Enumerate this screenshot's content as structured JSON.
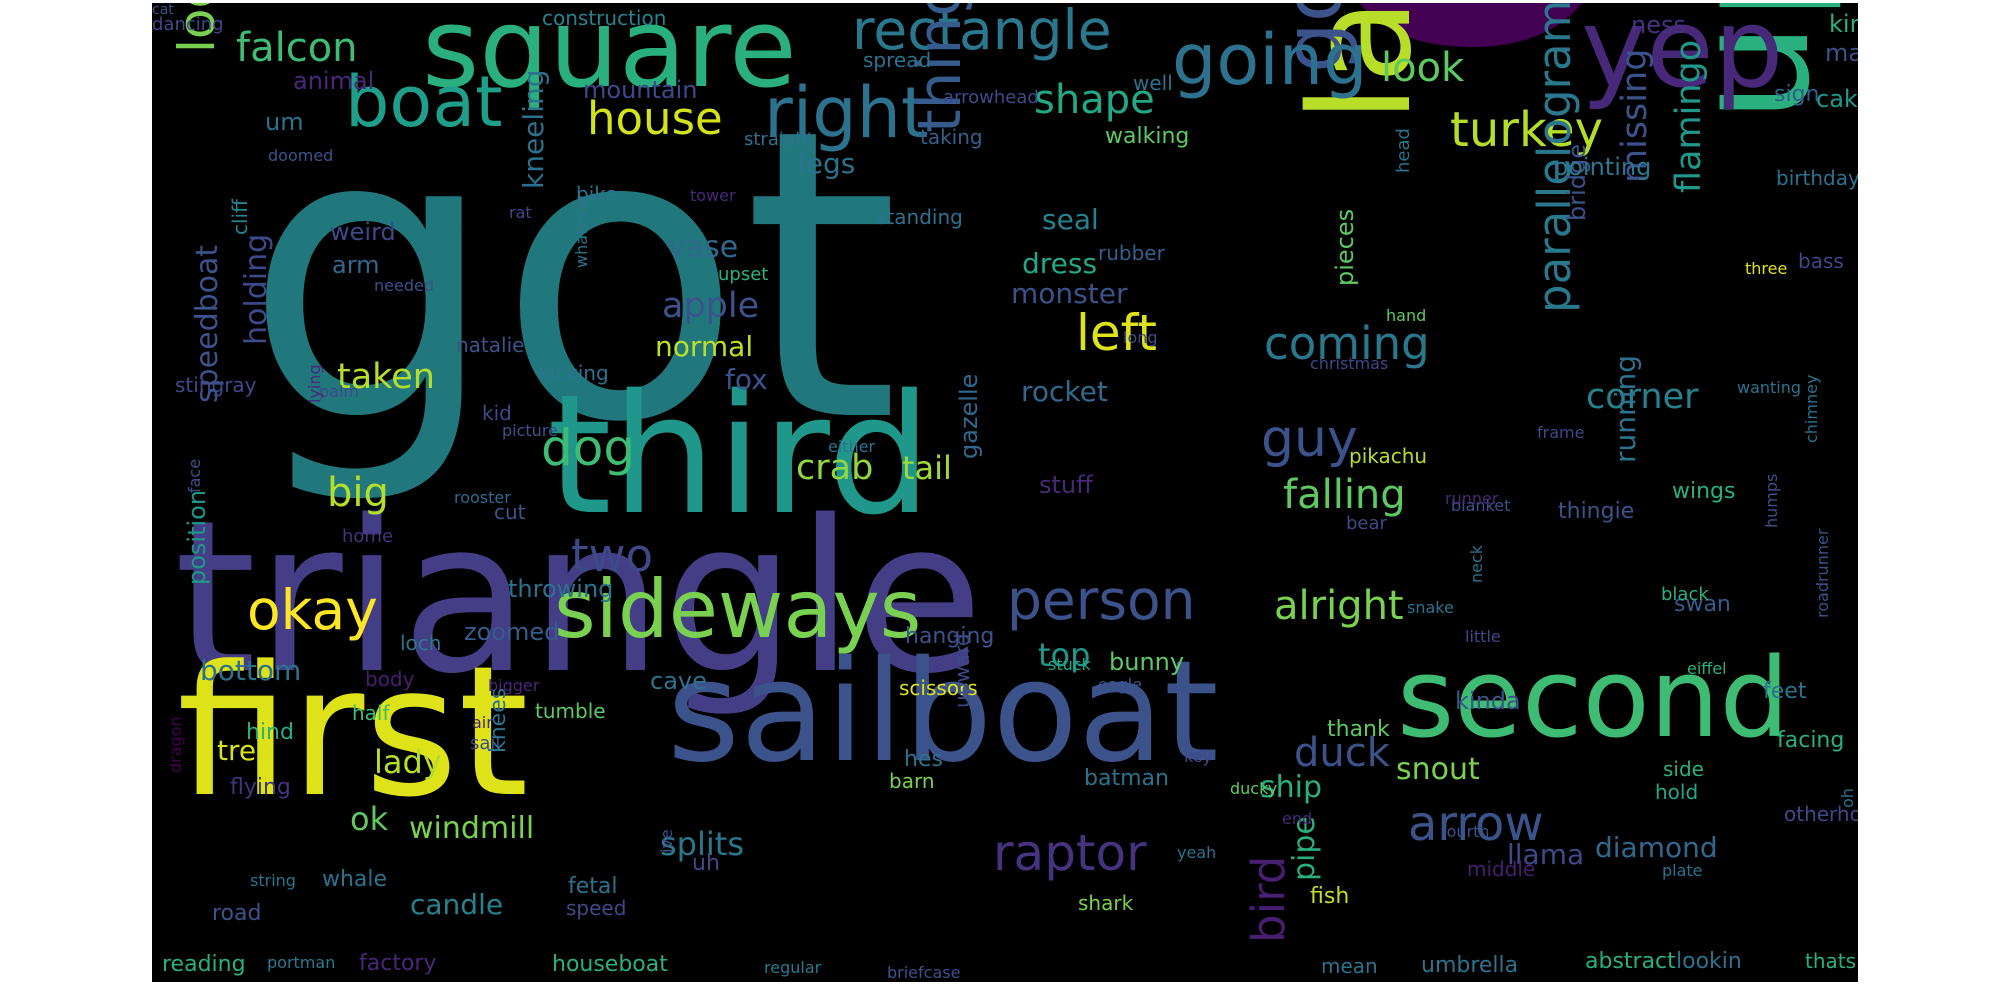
{
  "cloud": {
    "words": [
      {
        "text": "got",
        "color": "#21787c"
      },
      {
        "text": "one",
        "color": "#440154"
      },
      {
        "text": "triangle",
        "color": "#433e85"
      },
      {
        "text": "first",
        "color": "#dde318"
      },
      {
        "text": "third",
        "color": "#1f988b"
      },
      {
        "text": "upside",
        "color": "#2ab07f"
      },
      {
        "text": "last",
        "color": "#b8de29"
      },
      {
        "text": "sailboat",
        "color": "#3b528b"
      },
      {
        "text": "square",
        "color": "#2ab07f"
      },
      {
        "text": "second",
        "color": "#3fbc73"
      },
      {
        "text": "sideways",
        "color": "#7ad151"
      },
      {
        "text": "yep",
        "color": "#482878"
      },
      {
        "text": "gotcha",
        "color": "#3b528b"
      },
      {
        "text": "boat",
        "color": "#1f9e89"
      },
      {
        "text": "rectangle",
        "color": "#2a788e"
      },
      {
        "text": "going",
        "color": "#2c728e"
      },
      {
        "text": "looking",
        "color": "#7ad151"
      },
      {
        "text": "right",
        "color": "#2c728e"
      },
      {
        "text": "thing",
        "color": "#365c8d"
      },
      {
        "text": "person",
        "color": "#3b528b"
      },
      {
        "text": "okay",
        "color": "#fde725"
      },
      {
        "text": "dog",
        "color": "#3fbc73"
      },
      {
        "text": "look",
        "color": "#5ec962"
      },
      {
        "text": "falcon",
        "color": "#3fbc73"
      },
      {
        "text": "house",
        "color": "#d2e21b"
      },
      {
        "text": "turkey",
        "color": "#b5de2b"
      },
      {
        "text": "left",
        "color": "#dde318"
      },
      {
        "text": "guy",
        "color": "#3b528b"
      },
      {
        "text": "two",
        "color": "#3e4989"
      },
      {
        "text": "shape",
        "color": "#22a884"
      },
      {
        "text": "parallelogram",
        "color": "#2a788e"
      },
      {
        "text": "raptor",
        "color": "#46327e"
      },
      {
        "text": "arrow",
        "color": "#3b528b"
      },
      {
        "text": "big",
        "color": "#b5de2b"
      },
      {
        "text": "bird",
        "color": "#481f70"
      },
      {
        "text": "coming",
        "color": "#2a788e"
      },
      {
        "text": "alright",
        "color": "#7ad151"
      },
      {
        "text": "falling",
        "color": "#5ec962"
      },
      {
        "text": "corner",
        "color": "#26828e"
      },
      {
        "text": "flamingo",
        "color": "#1f988b"
      },
      {
        "text": "missing",
        "color": "#3b528b"
      },
      {
        "text": "apple",
        "color": "#3b528b"
      },
      {
        "text": "taken",
        "color": "#b5de2b"
      },
      {
        "text": "crab",
        "color": "#90d743"
      },
      {
        "text": "tail",
        "color": "#a0da39"
      },
      {
        "text": "vase",
        "color": "#31688e"
      },
      {
        "text": "duck",
        "color": "#3b528b"
      },
      {
        "text": "splits",
        "color": "#2a788e"
      },
      {
        "text": "ok",
        "color": "#5ec962"
      },
      {
        "text": "lady",
        "color": "#b5de2b"
      },
      {
        "text": "windmill",
        "color": "#7ad151"
      },
      {
        "text": "holding",
        "color": "#3e4989"
      },
      {
        "text": "speedboat",
        "color": "#3b528b"
      },
      {
        "text": "top",
        "color": "#1f988b"
      },
      {
        "text": "running",
        "color": "#2c728e"
      },
      {
        "text": "diamond",
        "color": "#31688e"
      },
      {
        "text": "llama",
        "color": "#3e4989"
      },
      {
        "text": "ship",
        "color": "#2ab07f"
      },
      {
        "text": "snout",
        "color": "#7ad151"
      },
      {
        "text": "kneeling",
        "color": "#2c728e"
      },
      {
        "text": "pipe",
        "color": "#2ab07f"
      },
      {
        "text": "fox",
        "color": "#3b528b"
      },
      {
        "text": "normal",
        "color": "#bddf26"
      },
      {
        "text": "legs",
        "color": "#2c728e"
      },
      {
        "text": "seal",
        "color": "#26828e"
      },
      {
        "text": "dress",
        "color": "#22a884"
      },
      {
        "text": "monster",
        "color": "#3b528b"
      },
      {
        "text": "rocket",
        "color": "#31688e"
      },
      {
        "text": "bottom",
        "color": "#2c728e"
      },
      {
        "text": "tree",
        "color": "#d8e219"
      },
      {
        "text": "mountain",
        "color": "#3e4989"
      },
      {
        "text": "weird",
        "color": "#3e4989"
      },
      {
        "text": "arm",
        "color": "#31688e"
      },
      {
        "text": "position",
        "color": "#1f988b"
      },
      {
        "text": "gazelle",
        "color": "#31688e"
      },
      {
        "text": "stuff",
        "color": "#482878"
      },
      {
        "text": "pieces",
        "color": "#5ec962"
      },
      {
        "text": "bridge",
        "color": "#3b528b"
      },
      {
        "text": "pointing",
        "color": "#2a788e"
      },
      {
        "text": "animal",
        "color": "#482878"
      },
      {
        "text": "um",
        "color": "#2c728e"
      },
      {
        "text": "sign",
        "color": "#365c8d"
      },
      {
        "text": "cake",
        "color": "#1f988b"
      },
      {
        "text": "kind",
        "color": "#2ab07f"
      },
      {
        "text": "man",
        "color": "#3b528b"
      },
      {
        "text": "ness",
        "color": "#46327e"
      },
      {
        "text": "spread",
        "color": "#2c728e"
      },
      {
        "text": "construction",
        "color": "#25848e"
      },
      {
        "text": "dancing",
        "color": "#3e4989"
      },
      {
        "text": "taking",
        "color": "#355f8d"
      },
      {
        "text": "walking",
        "color": "#5ec962"
      },
      {
        "text": "cliff",
        "color": "#26828e"
      },
      {
        "text": "standing",
        "color": "#2c728e"
      },
      {
        "text": "rubber",
        "color": "#355f8d"
      },
      {
        "text": "natalie",
        "color": "#3b528b"
      },
      {
        "text": "kicking",
        "color": "#2c728e"
      },
      {
        "text": "kid",
        "color": "#3e4989"
      },
      {
        "text": "picture",
        "color": "#3b528b"
      },
      {
        "text": "stingray",
        "color": "#3e4989"
      },
      {
        "text": "palm",
        "color": "#3e4989"
      },
      {
        "text": "cut",
        "color": "#3b528b"
      },
      {
        "text": "rooster",
        "color": "#31688e"
      },
      {
        "text": "home",
        "color": "#46327e"
      },
      {
        "text": "throwing",
        "color": "#2c728e"
      },
      {
        "text": "zoomed",
        "color": "#365c8d"
      },
      {
        "text": "loch",
        "color": "#2a788e"
      },
      {
        "text": "body",
        "color": "#481f70"
      },
      {
        "text": "bigger",
        "color": "#482878"
      },
      {
        "text": "tumble",
        "color": "#5ec962"
      },
      {
        "text": "cave",
        "color": "#2c728e"
      },
      {
        "text": "scissors",
        "color": "#dde318"
      },
      {
        "text": "bunny",
        "color": "#5ec962"
      },
      {
        "text": "stuck",
        "color": "#22a884"
      },
      {
        "text": "eagle",
        "color": "#3b528b"
      },
      {
        "text": "hanging",
        "color": "#3b528b"
      },
      {
        "text": "hind",
        "color": "#2ab07f"
      },
      {
        "text": "half",
        "color": "#3fbc73"
      },
      {
        "text": "air",
        "color": "#482878"
      },
      {
        "text": "sail",
        "color": "#3e4989"
      },
      {
        "text": "flying",
        "color": "#46327e"
      },
      {
        "text": "knees",
        "color": "#2c728e"
      },
      {
        "text": "hes",
        "color": "#2c728e"
      },
      {
        "text": "barn",
        "color": "#7ad151"
      },
      {
        "text": "batman",
        "color": "#2c728e"
      },
      {
        "text": "thank",
        "color": "#5ec962"
      },
      {
        "text": "candle",
        "color": "#26828e"
      },
      {
        "text": "uh",
        "color": "#3e4989"
      },
      {
        "text": "fetal",
        "color": "#2c728e"
      },
      {
        "text": "speed",
        "color": "#3e4989"
      },
      {
        "text": "whale",
        "color": "#2c728e"
      },
      {
        "text": "road",
        "color": "#3b528b"
      },
      {
        "text": "string",
        "color": "#2c728e"
      },
      {
        "text": "dragon",
        "color": "#440154"
      },
      {
        "text": "reading",
        "color": "#2ab07f"
      },
      {
        "text": "portman",
        "color": "#2a788e"
      },
      {
        "text": "factory",
        "color": "#482878"
      },
      {
        "text": "houseboat",
        "color": "#2ab07f"
      },
      {
        "text": "regular",
        "color": "#2a788e"
      },
      {
        "text": "briefcase",
        "color": "#3b528b"
      },
      {
        "text": "umbrella",
        "color": "#2c728e"
      },
      {
        "text": "abstract",
        "color": "#2ab07f"
      },
      {
        "text": "lookin",
        "color": "#2c728e"
      },
      {
        "text": "thats",
        "color": "#2ab07f"
      },
      {
        "text": "mean",
        "color": "#2c728e"
      },
      {
        "text": "fish",
        "color": "#c2df23"
      },
      {
        "text": "shark",
        "color": "#7ad151"
      },
      {
        "text": "middle",
        "color": "#481f70"
      },
      {
        "text": "yeah",
        "color": "#2c728e"
      },
      {
        "text": "end",
        "color": "#482878"
      },
      {
        "text": "ducky",
        "color": "#5ec962"
      },
      {
        "text": "key",
        "color": "#3e4989"
      },
      {
        "text": "ive",
        "color": "#3b528b"
      },
      {
        "text": "upward",
        "color": "#3e4989"
      },
      {
        "text": "hold",
        "color": "#22a884"
      },
      {
        "text": "side",
        "color": "#2ab07f"
      },
      {
        "text": "facing",
        "color": "#2ab07f"
      },
      {
        "text": "feet",
        "color": "#2c728e"
      },
      {
        "text": "eiffel",
        "color": "#2ab07f"
      },
      {
        "text": "fourth",
        "color": "#3b528b"
      },
      {
        "text": "otherhold",
        "color": "#3e4989"
      },
      {
        "text": "oh",
        "color": "#2c728e"
      },
      {
        "text": "plate",
        "color": "#2c728e"
      },
      {
        "text": "kinda",
        "color": "#3b528b"
      },
      {
        "text": "swan",
        "color": "#365c8d"
      },
      {
        "text": "black",
        "color": "#2ab07f"
      },
      {
        "text": "little",
        "color": "#3e4989"
      },
      {
        "text": "snake",
        "color": "#2c728e"
      },
      {
        "text": "neck",
        "color": "#2c728e"
      },
      {
        "text": "blanket",
        "color": "#3b528b"
      },
      {
        "text": "bear",
        "color": "#3e4989"
      },
      {
        "text": "runner",
        "color": "#482878"
      },
      {
        "text": "thingie",
        "color": "#3b528b"
      },
      {
        "text": "wings",
        "color": "#2ab07f"
      },
      {
        "text": "pikachu",
        "color": "#b5de2b"
      },
      {
        "text": "frame",
        "color": "#3e4989"
      },
      {
        "text": "humps",
        "color": "#3b528b"
      },
      {
        "text": "roadrunner",
        "color": "#3b528b"
      },
      {
        "text": "chimney",
        "color": "#2c728e"
      },
      {
        "text": "christmas",
        "color": "#3e4989"
      },
      {
        "text": "wanting",
        "color": "#2c728e"
      },
      {
        "text": "long",
        "color": "#3e4989"
      },
      {
        "text": "hand",
        "color": "#5ec962"
      },
      {
        "text": "three",
        "color": "#dde318"
      },
      {
        "text": "bass",
        "color": "#3e4989"
      },
      {
        "text": "head",
        "color": "#2c728e"
      },
      {
        "text": "birthday",
        "color": "#2c728e"
      },
      {
        "text": "upset",
        "color": "#2ab07f"
      },
      {
        "text": "tower",
        "color": "#482878"
      },
      {
        "text": "whatever",
        "color": "#2c728e"
      },
      {
        "text": "needed",
        "color": "#3b528b"
      },
      {
        "text": "lying",
        "color": "#482878"
      },
      {
        "text": "face",
        "color": "#3b528b"
      },
      {
        "text": "either",
        "color": "#2c728e"
      },
      {
        "text": "straight",
        "color": "#2c728e"
      },
      {
        "text": "arrowhead",
        "color": "#3e4989"
      },
      {
        "text": "well",
        "color": "#2c728e"
      },
      {
        "text": "bike",
        "color": "#2c728e"
      },
      {
        "text": "rat",
        "color": "#3e4989"
      },
      {
        "text": "doomed",
        "color": "#3b528b"
      },
      {
        "text": "cat",
        "color": "#3b528b"
      }
    ]
  }
}
